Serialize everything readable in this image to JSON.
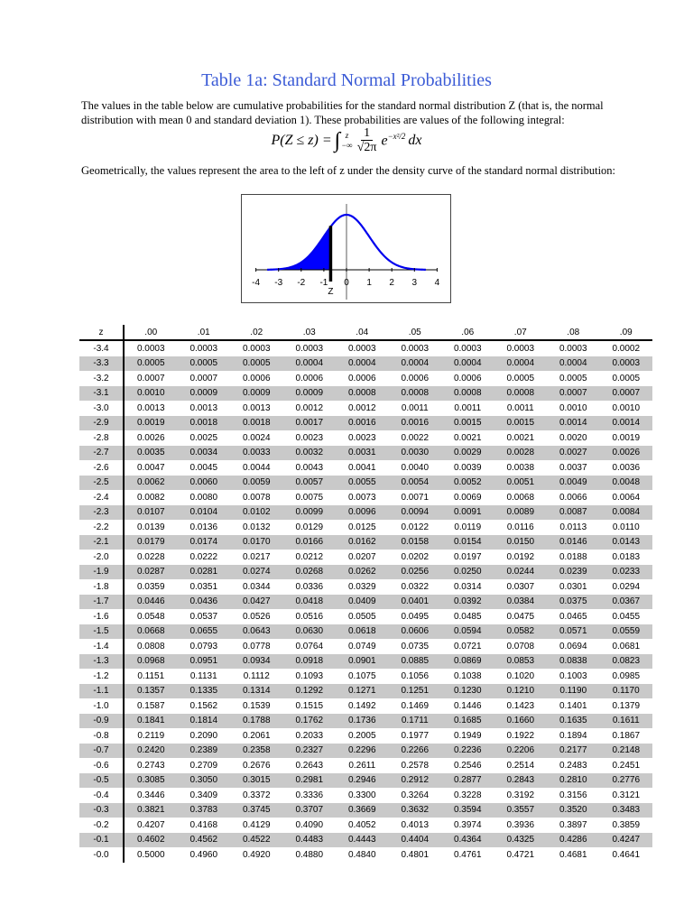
{
  "title": "Table 1a: Standard Normal Probabilities",
  "intro": "The values in the table below are cumulative probabilities for the standard normal distribution Z (that is, the normal distribution with mean 0 and standard deviation 1).  These probabilities are values of the following integral:",
  "formula": {
    "lhs": "P(Z ≤ z) =",
    "upper": "z",
    "lower": "−∞",
    "num": "1",
    "den": "√2π",
    "exp_base": "e",
    "exp": "−x²/2",
    "dx": "dx"
  },
  "geometric": "Geometrically, the values represent the area to the left of z under the density curve of the standard normal distribution:",
  "graph": {
    "ticks": [
      "-4",
      "-3",
      "-2",
      "-1",
      "0",
      "1",
      "2",
      "3",
      "4"
    ],
    "z_label": "Z",
    "z_value": -0.7,
    "curve_color": "#0000ee",
    "fill_color": "#0000ff"
  },
  "table": {
    "headers": [
      "z",
      ".00",
      ".01",
      ".02",
      ".03",
      ".04",
      ".05",
      ".06",
      ".07",
      ".08",
      ".09"
    ],
    "rows": [
      [
        "-3.4",
        "0.0003",
        "0.0003",
        "0.0003",
        "0.0003",
        "0.0003",
        "0.0003",
        "0.0003",
        "0.0003",
        "0.0003",
        "0.0002"
      ],
      [
        "-3.3",
        "0.0005",
        "0.0005",
        "0.0005",
        "0.0004",
        "0.0004",
        "0.0004",
        "0.0004",
        "0.0004",
        "0.0004",
        "0.0003"
      ],
      [
        "-3.2",
        "0.0007",
        "0.0007",
        "0.0006",
        "0.0006",
        "0.0006",
        "0.0006",
        "0.0006",
        "0.0005",
        "0.0005",
        "0.0005"
      ],
      [
        "-3.1",
        "0.0010",
        "0.0009",
        "0.0009",
        "0.0009",
        "0.0008",
        "0.0008",
        "0.0008",
        "0.0008",
        "0.0007",
        "0.0007"
      ],
      [
        "-3.0",
        "0.0013",
        "0.0013",
        "0.0013",
        "0.0012",
        "0.0012",
        "0.0011",
        "0.0011",
        "0.0011",
        "0.0010",
        "0.0010"
      ],
      [
        "-2.9",
        "0.0019",
        "0.0018",
        "0.0018",
        "0.0017",
        "0.0016",
        "0.0016",
        "0.0015",
        "0.0015",
        "0.0014",
        "0.0014"
      ],
      [
        "-2.8",
        "0.0026",
        "0.0025",
        "0.0024",
        "0.0023",
        "0.0023",
        "0.0022",
        "0.0021",
        "0.0021",
        "0.0020",
        "0.0019"
      ],
      [
        "-2.7",
        "0.0035",
        "0.0034",
        "0.0033",
        "0.0032",
        "0.0031",
        "0.0030",
        "0.0029",
        "0.0028",
        "0.0027",
        "0.0026"
      ],
      [
        "-2.6",
        "0.0047",
        "0.0045",
        "0.0044",
        "0.0043",
        "0.0041",
        "0.0040",
        "0.0039",
        "0.0038",
        "0.0037",
        "0.0036"
      ],
      [
        "-2.5",
        "0.0062",
        "0.0060",
        "0.0059",
        "0.0057",
        "0.0055",
        "0.0054",
        "0.0052",
        "0.0051",
        "0.0049",
        "0.0048"
      ],
      [
        "-2.4",
        "0.0082",
        "0.0080",
        "0.0078",
        "0.0075",
        "0.0073",
        "0.0071",
        "0.0069",
        "0.0068",
        "0.0066",
        "0.0064"
      ],
      [
        "-2.3",
        "0.0107",
        "0.0104",
        "0.0102",
        "0.0099",
        "0.0096",
        "0.0094",
        "0.0091",
        "0.0089",
        "0.0087",
        "0.0084"
      ],
      [
        "-2.2",
        "0.0139",
        "0.0136",
        "0.0132",
        "0.0129",
        "0.0125",
        "0.0122",
        "0.0119",
        "0.0116",
        "0.0113",
        "0.0110"
      ],
      [
        "-2.1",
        "0.0179",
        "0.0174",
        "0.0170",
        "0.0166",
        "0.0162",
        "0.0158",
        "0.0154",
        "0.0150",
        "0.0146",
        "0.0143"
      ],
      [
        "-2.0",
        "0.0228",
        "0.0222",
        "0.0217",
        "0.0212",
        "0.0207",
        "0.0202",
        "0.0197",
        "0.0192",
        "0.0188",
        "0.0183"
      ],
      [
        "-1.9",
        "0.0287",
        "0.0281",
        "0.0274",
        "0.0268",
        "0.0262",
        "0.0256",
        "0.0250",
        "0.0244",
        "0.0239",
        "0.0233"
      ],
      [
        "-1.8",
        "0.0359",
        "0.0351",
        "0.0344",
        "0.0336",
        "0.0329",
        "0.0322",
        "0.0314",
        "0.0307",
        "0.0301",
        "0.0294"
      ],
      [
        "-1.7",
        "0.0446",
        "0.0436",
        "0.0427",
        "0.0418",
        "0.0409",
        "0.0401",
        "0.0392",
        "0.0384",
        "0.0375",
        "0.0367"
      ],
      [
        "-1.6",
        "0.0548",
        "0.0537",
        "0.0526",
        "0.0516",
        "0.0505",
        "0.0495",
        "0.0485",
        "0.0475",
        "0.0465",
        "0.0455"
      ],
      [
        "-1.5",
        "0.0668",
        "0.0655",
        "0.0643",
        "0.0630",
        "0.0618",
        "0.0606",
        "0.0594",
        "0.0582",
        "0.0571",
        "0.0559"
      ],
      [
        "-1.4",
        "0.0808",
        "0.0793",
        "0.0778",
        "0.0764",
        "0.0749",
        "0.0735",
        "0.0721",
        "0.0708",
        "0.0694",
        "0.0681"
      ],
      [
        "-1.3",
        "0.0968",
        "0.0951",
        "0.0934",
        "0.0918",
        "0.0901",
        "0.0885",
        "0.0869",
        "0.0853",
        "0.0838",
        "0.0823"
      ],
      [
        "-1.2",
        "0.1151",
        "0.1131",
        "0.1112",
        "0.1093",
        "0.1075",
        "0.1056",
        "0.1038",
        "0.1020",
        "0.1003",
        "0.0985"
      ],
      [
        "-1.1",
        "0.1357",
        "0.1335",
        "0.1314",
        "0.1292",
        "0.1271",
        "0.1251",
        "0.1230",
        "0.1210",
        "0.1190",
        "0.1170"
      ],
      [
        "-1.0",
        "0.1587",
        "0.1562",
        "0.1539",
        "0.1515",
        "0.1492",
        "0.1469",
        "0.1446",
        "0.1423",
        "0.1401",
        "0.1379"
      ],
      [
        "-0.9",
        "0.1841",
        "0.1814",
        "0.1788",
        "0.1762",
        "0.1736",
        "0.1711",
        "0.1685",
        "0.1660",
        "0.1635",
        "0.1611"
      ],
      [
        "-0.8",
        "0.2119",
        "0.2090",
        "0.2061",
        "0.2033",
        "0.2005",
        "0.1977",
        "0.1949",
        "0.1922",
        "0.1894",
        "0.1867"
      ],
      [
        "-0.7",
        "0.2420",
        "0.2389",
        "0.2358",
        "0.2327",
        "0.2296",
        "0.2266",
        "0.2236",
        "0.2206",
        "0.2177",
        "0.2148"
      ],
      [
        "-0.6",
        "0.2743",
        "0.2709",
        "0.2676",
        "0.2643",
        "0.2611",
        "0.2578",
        "0.2546",
        "0.2514",
        "0.2483",
        "0.2451"
      ],
      [
        "-0.5",
        "0.3085",
        "0.3050",
        "0.3015",
        "0.2981",
        "0.2946",
        "0.2912",
        "0.2877",
        "0.2843",
        "0.2810",
        "0.2776"
      ],
      [
        "-0.4",
        "0.3446",
        "0.3409",
        "0.3372",
        "0.3336",
        "0.3300",
        "0.3264",
        "0.3228",
        "0.3192",
        "0.3156",
        "0.3121"
      ],
      [
        "-0.3",
        "0.3821",
        "0.3783",
        "0.3745",
        "0.3707",
        "0.3669",
        "0.3632",
        "0.3594",
        "0.3557",
        "0.3520",
        "0.3483"
      ],
      [
        "-0.2",
        "0.4207",
        "0.4168",
        "0.4129",
        "0.4090",
        "0.4052",
        "0.4013",
        "0.3974",
        "0.3936",
        "0.3897",
        "0.3859"
      ],
      [
        "-0.1",
        "0.4602",
        "0.4562",
        "0.4522",
        "0.4483",
        "0.4443",
        "0.4404",
        "0.4364",
        "0.4325",
        "0.4286",
        "0.4247"
      ],
      [
        "-0.0",
        "0.5000",
        "0.4960",
        "0.4920",
        "0.4880",
        "0.4840",
        "0.4801",
        "0.4761",
        "0.4721",
        "0.4681",
        "0.4641"
      ]
    ]
  }
}
